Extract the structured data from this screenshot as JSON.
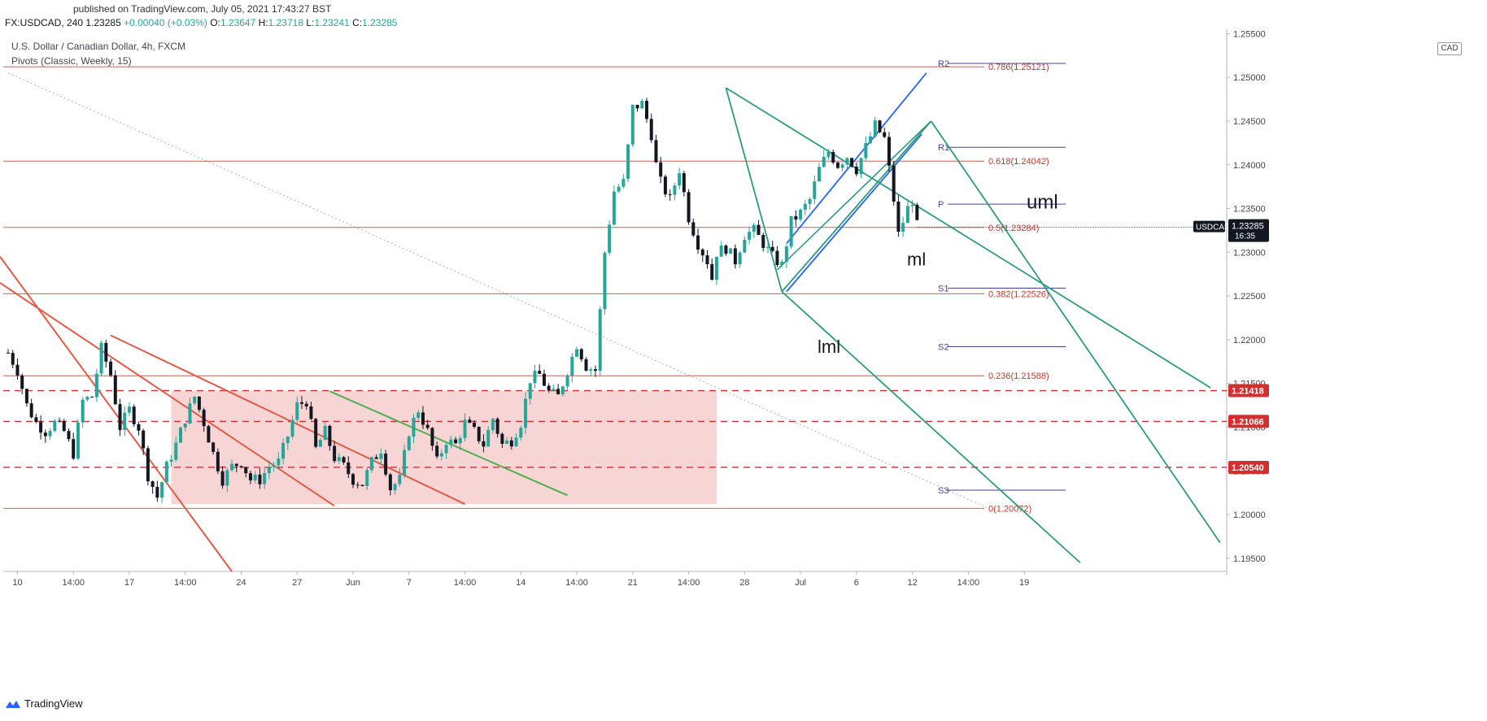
{
  "header": {
    "published": "published on TradingView.com, July 05, 2021 17:43:27 BST",
    "symbol_line": "FX:USDCAD, 240",
    "last_price": "1.23285",
    "change": "+0.00040 (+0.03%)",
    "open_label": "O:",
    "open": "1.23647",
    "high_label": "H:",
    "high": "1.23718",
    "low_label": "L:",
    "low": "1.23241",
    "close_label": "C:",
    "close": "1.23285",
    "title": "U.S. Dollar / Canadian Dollar, 4h, FXCM",
    "indicator": "Pivots (Classic, Weekly, 15)"
  },
  "currency_badge": "CAD",
  "brand": {
    "name": "TradingView",
    "icon": "tradingview-logo-icon"
  },
  "colors": {
    "up": "#26a69a",
    "down": "#131722",
    "fib": "#c0392b",
    "pitchfork": "#2e9a7c",
    "channel": "#2962ff",
    "trendline": "#e05a47",
    "greenline": "#4caf50",
    "pivot": "#4a3f94",
    "zone": "#f4c7c7"
  },
  "chart_data": {
    "type": "candlestick",
    "title": "U.S. Dollar / Canadian Dollar, 4h, FXCM",
    "ylim": [
      1.1935,
      1.2555
    ],
    "y_ticks": [
      "1.25500",
      "1.25000",
      "1.24500",
      "1.24000",
      "1.23500",
      "1.23000",
      "1.22500",
      "1.22000",
      "1.21500",
      "1.21000",
      "1.20500",
      "1.20000",
      "1.19500"
    ],
    "x_ticks": [
      {
        "label": "10",
        "i": 2
      },
      {
        "label": "14:00",
        "i": 14
      },
      {
        "label": "17",
        "i": 26
      },
      {
        "label": "14:00",
        "i": 38
      },
      {
        "label": "24",
        "i": 50
      },
      {
        "label": "27",
        "i": 62
      },
      {
        "label": "Jun",
        "i": 74
      },
      {
        "label": "7",
        "i": 86
      },
      {
        "label": "14:00",
        "i": 98
      },
      {
        "label": "14",
        "i": 110
      },
      {
        "label": "14:00",
        "i": 122
      },
      {
        "label": "21",
        "i": 134
      },
      {
        "label": "14:00",
        "i": 146
      },
      {
        "label": "28",
        "i": 158
      },
      {
        "label": "Jul",
        "i": 170
      },
      {
        "label": "6",
        "i": 182
      },
      {
        "label": "12",
        "i": 194
      },
      {
        "label": "14:00",
        "i": 206
      },
      {
        "label": "19",
        "i": 218
      }
    ],
    "close_path": [
      [
        0,
        1.2185
      ],
      [
        2,
        1.2165
      ],
      [
        4,
        1.2125
      ],
      [
        6,
        1.2105
      ],
      [
        8,
        1.2095
      ],
      [
        10,
        1.2105
      ],
      [
        12,
        1.2095
      ],
      [
        14,
        1.207
      ],
      [
        16,
        1.213
      ],
      [
        18,
        1.2135
      ],
      [
        20,
        1.219
      ],
      [
        22,
        1.216
      ],
      [
        24,
        1.21
      ],
      [
        26,
        1.212
      ],
      [
        28,
        1.21
      ],
      [
        30,
        1.2045
      ],
      [
        32,
        1.202
      ],
      [
        34,
        1.2055
      ],
      [
        36,
        1.208
      ],
      [
        38,
        1.211
      ],
      [
        40,
        1.2135
      ],
      [
        42,
        1.2105
      ],
      [
        44,
        1.207
      ],
      [
        46,
        1.204
      ],
      [
        48,
        1.2055
      ],
      [
        50,
        1.206
      ],
      [
        52,
        1.204
      ],
      [
        54,
        1.204
      ],
      [
        56,
        1.2055
      ],
      [
        58,
        1.206
      ],
      [
        60,
        1.209
      ],
      [
        62,
        1.2125
      ],
      [
        64,
        1.213
      ],
      [
        66,
        1.2075
      ],
      [
        68,
        1.2095
      ],
      [
        70,
        1.2065
      ],
      [
        72,
        1.2055
      ],
      [
        74,
        1.204
      ],
      [
        76,
        1.2035
      ],
      [
        78,
        1.206
      ],
      [
        80,
        1.2075
      ],
      [
        82,
        1.203
      ],
      [
        84,
        1.204
      ],
      [
        86,
        1.2095
      ],
      [
        88,
        1.212
      ],
      [
        90,
        1.2095
      ],
      [
        92,
        1.206
      ],
      [
        94,
        1.2085
      ],
      [
        96,
        1.208
      ],
      [
        98,
        1.2105
      ],
      [
        100,
        1.2095
      ],
      [
        102,
        1.208
      ],
      [
        104,
        1.211
      ],
      [
        106,
        1.208
      ],
      [
        108,
        1.2085
      ],
      [
        110,
        1.2105
      ],
      [
        112,
        1.2155
      ],
      [
        114,
        1.216
      ],
      [
        116,
        1.214
      ],
      [
        118,
        1.2135
      ],
      [
        120,
        1.2165
      ],
      [
        122,
        1.2195
      ],
      [
        124,
        1.217
      ],
      [
        126,
        1.2165
      ],
      [
        128,
        1.23
      ],
      [
        130,
        1.237
      ],
      [
        132,
        1.238
      ],
      [
        133,
        1.242
      ],
      [
        134,
        1.2465
      ],
      [
        136,
        1.247
      ],
      [
        138,
        1.2435
      ],
      [
        139,
        1.24
      ],
      [
        140,
        1.238
      ],
      [
        142,
        1.236
      ],
      [
        144,
        1.2395
      ],
      [
        146,
        1.234
      ],
      [
        148,
        1.231
      ],
      [
        150,
        1.229
      ],
      [
        151,
        1.227
      ],
      [
        152,
        1.23
      ],
      [
        154,
        1.2305
      ],
      [
        156,
        1.229
      ],
      [
        158,
        1.232
      ],
      [
        160,
        1.2325
      ],
      [
        162,
        1.231
      ],
      [
        164,
        1.2295
      ],
      [
        166,
        1.2285
      ],
      [
        168,
        1.2335
      ],
      [
        170,
        1.2345
      ],
      [
        172,
        1.236
      ],
      [
        174,
        1.2395
      ],
      [
        176,
        1.2415
      ],
      [
        178,
        1.24
      ],
      [
        180,
        1.241
      ],
      [
        182,
        1.2395
      ],
      [
        184,
        1.242
      ],
      [
        186,
        1.2445
      ],
      [
        188,
        1.243
      ],
      [
        189,
        1.2395
      ],
      [
        190,
        1.236
      ],
      [
        191,
        1.232
      ],
      [
        192,
        1.2335
      ],
      [
        193,
        1.235
      ],
      [
        194,
        1.236
      ],
      [
        195,
        1.233
      ]
    ],
    "last_price": {
      "value": 1.23285,
      "label": "USDCAD",
      "price": "1.23285",
      "countdown": "16:35"
    },
    "fib_levels": [
      {
        "label": "0.786(1.25121)",
        "value": 1.25121
      },
      {
        "label": "0.618(1.24042)",
        "value": 1.24042
      },
      {
        "label": "0.5(1.23284)",
        "value": 1.23284
      },
      {
        "label": "0.382(1.22526)",
        "value": 1.22526
      },
      {
        "label": "0.236(1.21588)",
        "value": 1.21588
      },
      {
        "label": "0(1.20072)",
        "value": 1.20072
      }
    ],
    "pivot_levels": [
      {
        "label": "R2",
        "value": 1.2516
      },
      {
        "label": "R1",
        "value": 1.242
      },
      {
        "label": "P",
        "value": 1.2355
      },
      {
        "label": "S1",
        "value": 1.2259
      },
      {
        "label": "S2",
        "value": 1.2192
      },
      {
        "label": "S3",
        "value": 1.2028
      }
    ],
    "horizontal_levels": [
      {
        "label": "1.21418",
        "value": 1.21418
      },
      {
        "label": "1.21066",
        "value": 1.21066
      },
      {
        "label": "1.20540",
        "value": 1.2054
      }
    ],
    "pitchfork_labels": {
      "upper": "uml",
      "median": "ml",
      "lower": "lml"
    },
    "annotations": [
      "uml",
      "ml",
      "lml"
    ]
  }
}
